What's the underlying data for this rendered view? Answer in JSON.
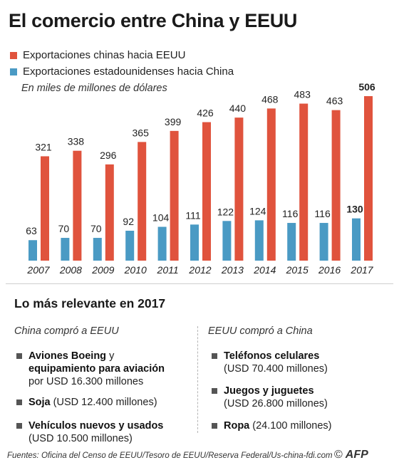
{
  "title": "El comercio entre China y EEUU",
  "legend": [
    {
      "label": "Exportaciones chinas hacia EEUU",
      "color": "#e0533d"
    },
    {
      "label": "Exportaciones estadounidenses hacia China",
      "color": "#4a9ac4"
    }
  ],
  "unit_note": "En miles de millones de dólares",
  "chart_data": {
    "type": "bar",
    "categories": [
      "2007",
      "2008",
      "2009",
      "2010",
      "2011",
      "2012",
      "2013",
      "2014",
      "2015",
      "2016",
      "2017"
    ],
    "series": [
      {
        "name": "Exportaciones chinas hacia EEUU",
        "color": "#e0533d",
        "values": [
          321,
          338,
          296,
          365,
          399,
          426,
          440,
          468,
          483,
          463,
          506
        ]
      },
      {
        "name": "Exportaciones estadounidenses hacia China",
        "color": "#4a9ac4",
        "values": [
          63,
          70,
          70,
          92,
          104,
          111,
          122,
          124,
          116,
          116,
          130
        ]
      }
    ],
    "ylim": [
      0,
      506
    ],
    "highlight_category": "2017",
    "grid": false
  },
  "section": {
    "title": "Lo más relevante en 2017",
    "left": {
      "heading": "China compró a EEUU",
      "items": [
        {
          "bold": "Aviones Boeing",
          "rest": " y"
        },
        {
          "bold": "equipamiento para aviación",
          "rest": ""
        },
        {
          "bold": "",
          "rest": "por USD 16.300 millones"
        },
        {
          "bold": "Soja",
          "rest": " (USD 12.400 millones)"
        },
        {
          "bold": "Vehículos nuevos y usados",
          "rest": ""
        },
        {
          "bold": "",
          "rest": "(USD 10.500 millones)"
        }
      ]
    },
    "right": {
      "heading": "EEUU compró a China",
      "items": [
        {
          "bold": "Teléfonos celulares",
          "rest": ""
        },
        {
          "bold": "",
          "rest": "(USD 70.400 millones)"
        },
        {
          "bold": "Juegos y juguetes",
          "rest": ""
        },
        {
          "bold": "",
          "rest": "(USD 26.800 millones)"
        },
        {
          "bold": "Ropa",
          "rest": " (24.100 millones)"
        }
      ]
    }
  },
  "footer": "Fuentes: Oficina del Censo de EEUU/Tesoro de EEUU/Reserva Federal/Us-china-fdi.com",
  "logo": {
    "symbol": "©",
    "text": "AFP"
  }
}
